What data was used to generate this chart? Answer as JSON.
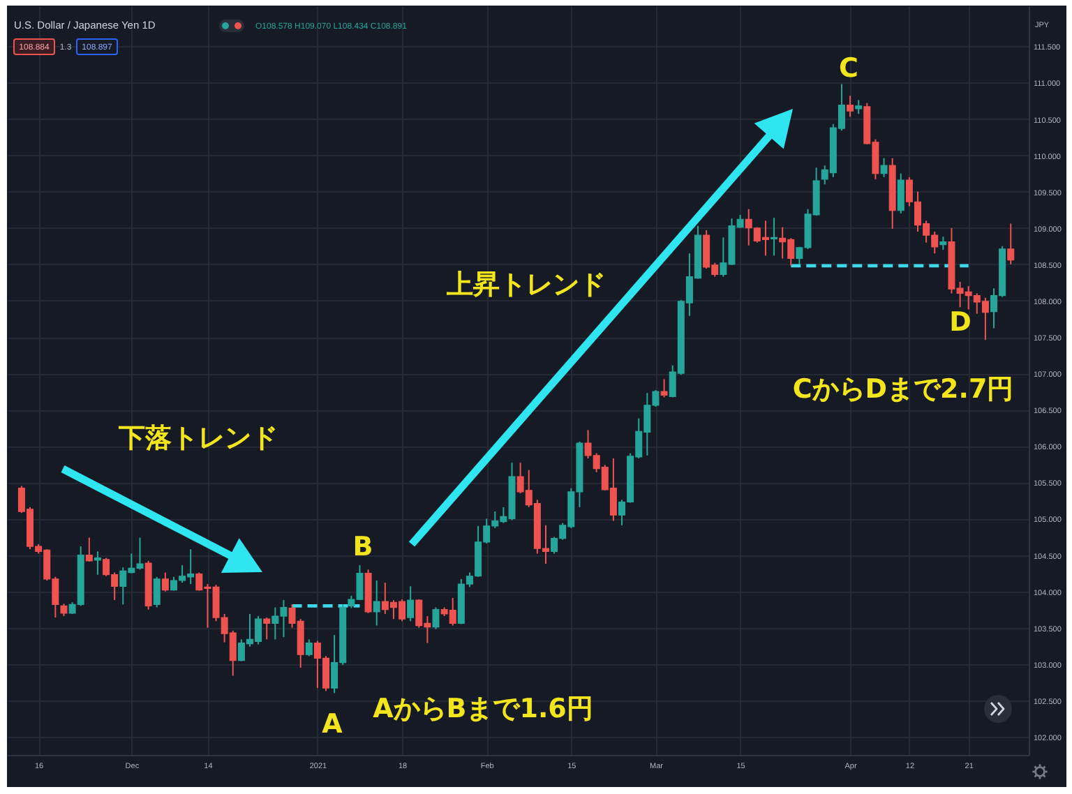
{
  "chart_data": {
    "type": "candlestick",
    "title": "U.S. Dollar / Japanese Yen 1D",
    "ylabel": "JPY",
    "annotations": [
      "O108.578 H109.070 L108.434 C108.891",
      "108.884",
      "1.3",
      "108.897",
      "下落トレンド",
      "上昇トレンド",
      "A",
      "B",
      "C",
      "D",
      "AからBまで1.6円",
      "CからDまで2.7円"
    ],
    "categories": [
      null,
      null,
      "16",
      null,
      null,
      null,
      null,
      null,
      null,
      null,
      null,
      null,
      null,
      "Dec",
      null,
      null,
      null,
      null,
      null,
      null,
      null,
      null,
      "14",
      null,
      null,
      null,
      null,
      null,
      null,
      null,
      null,
      null,
      null,
      null,
      null,
      "2021",
      null,
      null,
      null,
      null,
      null,
      null,
      null,
      null,
      null,
      "18",
      null,
      null,
      null,
      null,
      null,
      null,
      null,
      null,
      null,
      "Feb",
      null,
      null,
      null,
      null,
      null,
      null,
      null,
      null,
      null,
      "15",
      null,
      null,
      null,
      null,
      null,
      null,
      null,
      null,
      null,
      "Mar",
      null,
      null,
      null,
      null,
      null,
      null,
      null,
      null,
      null,
      "15",
      null,
      null,
      null,
      null,
      null,
      null,
      null,
      null,
      null,
      null,
      null,
      null,
      "Apr",
      null,
      null,
      null,
      null,
      null,
      null,
      "12",
      null,
      null,
      null,
      null,
      null,
      null,
      "21",
      null,
      null,
      null,
      null,
      null
    ],
    "ohlc": [
      [
        105.42,
        105.45,
        105.08,
        105.1
      ],
      [
        105.13,
        105.16,
        104.58,
        104.62
      ],
      [
        104.62,
        104.65,
        104.52,
        104.55
      ],
      [
        104.57,
        104.58,
        104.15,
        104.17
      ],
      [
        104.17,
        104.2,
        103.64,
        103.82
      ],
      [
        103.8,
        103.83,
        103.66,
        103.7
      ],
      [
        103.7,
        103.85,
        103.69,
        103.82
      ],
      [
        103.82,
        104.62,
        103.8,
        104.5
      ],
      [
        104.5,
        104.74,
        104.41,
        104.42
      ],
      [
        104.43,
        104.55,
        104.23,
        104.46
      ],
      [
        104.44,
        104.46,
        104.21,
        104.23
      ],
      [
        104.23,
        104.26,
        103.88,
        104.07
      ],
      [
        104.07,
        104.33,
        103.82,
        104.28
      ],
      [
        104.26,
        104.52,
        104.25,
        104.32
      ],
      [
        104.32,
        104.74,
        104.3,
        104.38
      ],
      [
        104.39,
        104.42,
        103.75,
        103.8
      ],
      [
        103.82,
        104.2,
        103.78,
        104.17
      ],
      [
        104.17,
        104.26,
        104.0,
        104.02
      ],
      [
        104.02,
        104.2,
        104.01,
        104.15
      ],
      [
        104.15,
        104.36,
        104.12,
        104.21
      ],
      [
        104.2,
        104.58,
        104.1,
        104.24
      ],
      [
        104.24,
        104.26,
        104.01,
        104.02
      ],
      [
        104.06,
        104.1,
        103.5,
        104.04
      ],
      [
        104.06,
        104.09,
        103.59,
        103.64
      ],
      [
        103.64,
        103.69,
        103.3,
        103.42
      ],
      [
        103.43,
        103.46,
        102.84,
        103.05
      ],
      [
        103.05,
        103.34,
        103.04,
        103.29
      ],
      [
        103.28,
        103.69,
        103.24,
        103.34
      ],
      [
        103.31,
        103.66,
        103.27,
        103.62
      ],
      [
        103.62,
        103.64,
        103.34,
        103.56
      ],
      [
        103.56,
        103.78,
        103.34,
        103.66
      ],
      [
        103.66,
        103.88,
        103.37,
        103.78
      ],
      [
        103.77,
        103.82,
        103.5,
        103.56
      ],
      [
        103.59,
        103.62,
        102.95,
        103.13
      ],
      [
        103.13,
        103.34,
        103.11,
        103.29
      ],
      [
        103.29,
        103.32,
        102.67,
        103.08
      ],
      [
        103.08,
        103.11,
        102.63,
        102.67
      ],
      [
        102.67,
        103.4,
        102.6,
        103.02
      ],
      [
        103.02,
        103.82,
        102.99,
        103.78
      ],
      [
        103.8,
        103.94,
        103.77,
        103.89
      ],
      [
        103.89,
        104.36,
        103.88,
        104.25
      ],
      [
        104.25,
        104.3,
        103.7,
        103.72
      ],
      [
        103.72,
        104.15,
        103.53,
        103.86
      ],
      [
        103.86,
        104.12,
        103.69,
        103.75
      ],
      [
        103.85,
        103.88,
        103.62,
        103.78
      ],
      [
        103.86,
        103.89,
        103.59,
        103.62
      ],
      [
        103.64,
        104.07,
        103.59,
        103.88
      ],
      [
        103.88,
        103.89,
        103.5,
        103.53
      ],
      [
        103.56,
        103.66,
        103.29,
        103.51
      ],
      [
        103.51,
        103.78,
        103.48,
        103.75
      ],
      [
        103.75,
        103.78,
        103.66,
        103.69
      ],
      [
        103.74,
        103.91,
        103.53,
        103.56
      ],
      [
        103.56,
        104.17,
        103.55,
        104.1
      ],
      [
        104.1,
        104.26,
        104.06,
        104.21
      ],
      [
        104.21,
        104.9,
        104.2,
        104.68
      ],
      [
        104.68,
        105.0,
        104.66,
        104.9
      ],
      [
        104.9,
        105.1,
        104.87,
        104.97
      ],
      [
        104.96,
        105.16,
        104.94,
        105.03
      ],
      [
        105.0,
        105.77,
        104.98,
        105.58
      ],
      [
        105.58,
        105.77,
        105.35,
        105.37
      ],
      [
        105.39,
        105.67,
        105.16,
        105.19
      ],
      [
        105.21,
        105.26,
        104.52,
        104.59
      ],
      [
        104.59,
        104.91,
        104.38,
        104.55
      ],
      [
        104.55,
        104.75,
        104.52,
        104.73
      ],
      [
        104.73,
        104.94,
        104.71,
        104.91
      ],
      [
        104.89,
        105.42,
        104.87,
        105.37
      ],
      [
        105.37,
        106.06,
        105.16,
        106.04
      ],
      [
        106.04,
        106.22,
        105.83,
        105.87
      ],
      [
        105.87,
        105.9,
        105.64,
        105.69
      ],
      [
        105.71,
        105.74,
        105.39,
        105.4
      ],
      [
        105.42,
        105.83,
        104.97,
        105.05
      ],
      [
        105.05,
        105.26,
        104.91,
        105.23
      ],
      [
        105.23,
        105.9,
        105.22,
        105.86
      ],
      [
        105.85,
        106.38,
        105.83,
        106.2
      ],
      [
        106.19,
        106.73,
        105.87,
        106.56
      ],
      [
        106.56,
        106.77,
        106.54,
        106.75
      ],
      [
        106.75,
        106.92,
        106.67,
        106.7
      ],
      [
        106.68,
        107.11,
        106.67,
        107.02
      ],
      [
        107.0,
        108.01,
        106.98,
        107.99
      ],
      [
        107.97,
        108.65,
        107.79,
        108.33
      ],
      [
        108.31,
        109.03,
        108.3,
        108.9
      ],
      [
        108.9,
        108.97,
        108.44,
        108.46
      ],
      [
        108.49,
        108.52,
        108.33,
        108.36
      ],
      [
        108.36,
        108.87,
        108.33,
        108.52
      ],
      [
        108.5,
        109.13,
        108.49,
        109.03
      ],
      [
        109.01,
        109.18,
        109.0,
        109.12
      ],
      [
        109.12,
        109.26,
        108.76,
        109.0
      ],
      [
        109.0,
        109.01,
        108.8,
        108.82
      ],
      [
        108.87,
        109.1,
        108.62,
        108.84
      ],
      [
        108.85,
        109.14,
        108.62,
        108.87
      ],
      [
        108.86,
        109.01,
        108.58,
        108.81
      ],
      [
        108.84,
        108.86,
        108.48,
        108.58
      ],
      [
        108.58,
        108.74,
        108.5,
        108.73
      ],
      [
        108.73,
        109.26,
        108.71,
        109.19
      ],
      [
        109.18,
        109.83,
        109.17,
        109.65
      ],
      [
        109.67,
        109.86,
        109.6,
        109.8
      ],
      [
        109.76,
        110.43,
        109.7,
        110.38
      ],
      [
        110.37,
        110.98,
        110.34,
        110.69
      ],
      [
        110.69,
        110.82,
        110.53,
        110.61
      ],
      [
        110.64,
        110.76,
        110.57,
        110.68
      ],
      [
        110.67,
        110.72,
        110.15,
        110.16
      ],
      [
        110.18,
        110.22,
        109.67,
        109.75
      ],
      [
        109.75,
        109.96,
        109.7,
        109.86
      ],
      [
        109.86,
        109.96,
        108.99,
        109.24
      ],
      [
        109.24,
        109.75,
        109.2,
        109.66
      ],
      [
        109.66,
        109.7,
        109.3,
        109.36
      ],
      [
        109.36,
        109.5,
        108.95,
        109.04
      ],
      [
        109.06,
        109.1,
        108.8,
        108.9
      ],
      [
        108.9,
        108.95,
        108.65,
        108.74
      ],
      [
        108.77,
        108.88,
        108.7,
        108.81
      ],
      [
        108.81,
        109.0,
        108.1,
        108.16
      ],
      [
        108.17,
        108.26,
        107.91,
        108.1
      ],
      [
        108.12,
        108.2,
        107.88,
        108.07
      ],
      [
        108.07,
        108.1,
        107.82,
        107.98
      ],
      [
        107.99,
        108.04,
        107.46,
        107.84
      ],
      [
        107.85,
        108.17,
        107.62,
        108.07
      ],
      [
        108.07,
        108.75,
        108.05,
        108.71
      ],
      [
        108.71,
        109.06,
        108.5,
        108.56
      ]
    ],
    "colors": [
      "#ef5350",
      "#ef5350",
      "#ef5350",
      "#ef5350",
      "#ef5350",
      "#ef5350",
      "#26a69a",
      "#26a69a",
      "#ef5350",
      "#26a69a",
      "#ef5350",
      "#ef5350",
      "#26a69a",
      "#26a69a",
      "#26a69a",
      "#ef5350",
      "#26a69a",
      "#ef5350",
      "#26a69a",
      "#26a69a",
      "#26a69a",
      "#ef5350",
      "#ef5350",
      "#ef5350",
      "#ef5350",
      "#ef5350",
      "#26a69a",
      "#26a69a",
      "#26a69a",
      "#ef5350",
      "#26a69a",
      "#26a69a",
      "#ef5350",
      "#ef5350",
      "#26a69a",
      "#ef5350",
      "#ef5350",
      "#26a69a",
      "#26a69a",
      "#26a69a",
      "#26a69a",
      "#ef5350",
      "#26a69a",
      "#ef5350",
      "#ef5350",
      "#ef5350",
      "#26a69a",
      "#ef5350",
      "#ef5350",
      "#26a69a",
      "#ef5350",
      "#ef5350",
      "#26a69a",
      "#26a69a",
      "#26a69a",
      "#26a69a",
      "#26a69a",
      "#26a69a",
      "#26a69a",
      "#ef5350",
      "#ef5350",
      "#ef5350",
      "#ef5350",
      "#26a69a",
      "#26a69a",
      "#26a69a",
      "#26a69a",
      "#ef5350",
      "#ef5350",
      "#ef5350",
      "#ef5350",
      "#26a69a",
      "#26a69a",
      "#26a69a",
      "#26a69a",
      "#26a69a",
      "#ef5350",
      "#26a69a",
      "#26a69a",
      "#26a69a",
      "#26a69a",
      "#ef5350",
      "#ef5350",
      "#26a69a",
      "#26a69a",
      "#26a69a",
      "#ef5350",
      "#ef5350",
      "#ef5350",
      "#26a69a",
      "#ef5350",
      "#ef5350",
      "#26a69a",
      "#26a69a",
      "#26a69a",
      "#26a69a",
      "#26a69a",
      "#26a69a",
      "#ef5350",
      "#26a69a",
      "#ef5350",
      "#ef5350",
      "#26a69a",
      "#ef5350",
      "#26a69a",
      "#ef5350",
      "#ef5350",
      "#ef5350",
      "#ef5350",
      "#26a69a",
      "#ef5350",
      "#ef5350",
      "#ef5350",
      "#ef5350",
      "#ef5350",
      "#26a69a",
      "#26a69a",
      "#ef5350"
    ],
    "series": [
      {
        "type": "line",
        "color": "#3dd9ea",
        "line_style": "dashed",
        "values": [
          null,
          null,
          null,
          null,
          null,
          null,
          null,
          null,
          null,
          null,
          null,
          null,
          null,
          null,
          null,
          null,
          null,
          null,
          null,
          null,
          null,
          null,
          null,
          null,
          null,
          null,
          null,
          null,
          null,
          null,
          null,
          null,
          103.8,
          103.8,
          103.8,
          103.8,
          103.8,
          103.8,
          103.8,
          103.8,
          103.8,
          null,
          null,
          null,
          null,
          null,
          null,
          null,
          null,
          null,
          null,
          null,
          null,
          null,
          null,
          null,
          null,
          null,
          null,
          null,
          null,
          null,
          null,
          null,
          null,
          null,
          null,
          null,
          null,
          null,
          null,
          null,
          null,
          null,
          null,
          null,
          null,
          null,
          null,
          null,
          null,
          null,
          null,
          null,
          null,
          null,
          null,
          null,
          null,
          null,
          null,
          108.48,
          108.48,
          108.48,
          108.48,
          108.48,
          108.48,
          108.48,
          108.48,
          108.48,
          108.48,
          108.48,
          108.48,
          108.48,
          108.48,
          108.48,
          108.48,
          108.48,
          108.48,
          108.48,
          108.48,
          108.48,
          108.48,
          null,
          null,
          null,
          null,
          null
        ]
      }
    ],
    "ylim": [
      101.75,
      112.06
    ],
    "yticks": [
      {
        "value": 102,
        "label": "102.000"
      },
      {
        "value": 102.5,
        "label": "102.500"
      },
      {
        "value": 103,
        "label": "103.000"
      },
      {
        "value": 103.5,
        "label": "103.500"
      },
      {
        "value": 104,
        "label": "104.000"
      },
      {
        "value": 104.5,
        "label": "104.500"
      },
      {
        "value": 105,
        "label": "105.000"
      },
      {
        "value": 105.5,
        "label": "105.500"
      },
      {
        "value": 106,
        "label": "106.000"
      },
      {
        "value": 106.5,
        "label": "106.500"
      },
      {
        "value": 107,
        "label": "107.000"
      },
      {
        "value": 107.5,
        "label": "107.500"
      },
      {
        "value": 108,
        "label": "108.000"
      },
      {
        "value": 108.5,
        "label": "108.500"
      },
      {
        "value": 109,
        "label": "109.000"
      },
      {
        "value": 109.5,
        "label": "109.500"
      },
      {
        "value": 110,
        "label": "110.000"
      },
      {
        "value": 110.5,
        "label": "110.500"
      },
      {
        "value": 111,
        "label": "111.000"
      },
      {
        "value": 111.5,
        "label": "111.500"
      }
    ],
    "grid": true
  }
}
